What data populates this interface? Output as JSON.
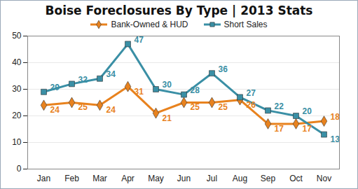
{
  "chart_data": {
    "type": "line",
    "title": "Boise Foreclosures By Type | 2013 Stats",
    "categories": [
      "Jan",
      "Feb",
      "Mar",
      "Apr",
      "May",
      "Jun",
      "Jul",
      "Aug",
      "Sep",
      "Oct",
      "Nov"
    ],
    "series": [
      {
        "name": "Bank-Owned & HUD",
        "color": "#e8821e",
        "marker": "diamond",
        "values": [
          24,
          25,
          24,
          31,
          21,
          25,
          25,
          26,
          17,
          17,
          18
        ]
      },
      {
        "name": "Short Sales",
        "color": "#3a8fa5",
        "marker": "square",
        "values": [
          29,
          32,
          34,
          47,
          30,
          28,
          36,
          27,
          22,
          20,
          13
        ]
      }
    ],
    "ylim": [
      0,
      50
    ],
    "yticks": [
      0,
      10,
      20,
      30,
      40,
      50
    ],
    "grid": true,
    "legend": "top",
    "data_labels": true
  }
}
